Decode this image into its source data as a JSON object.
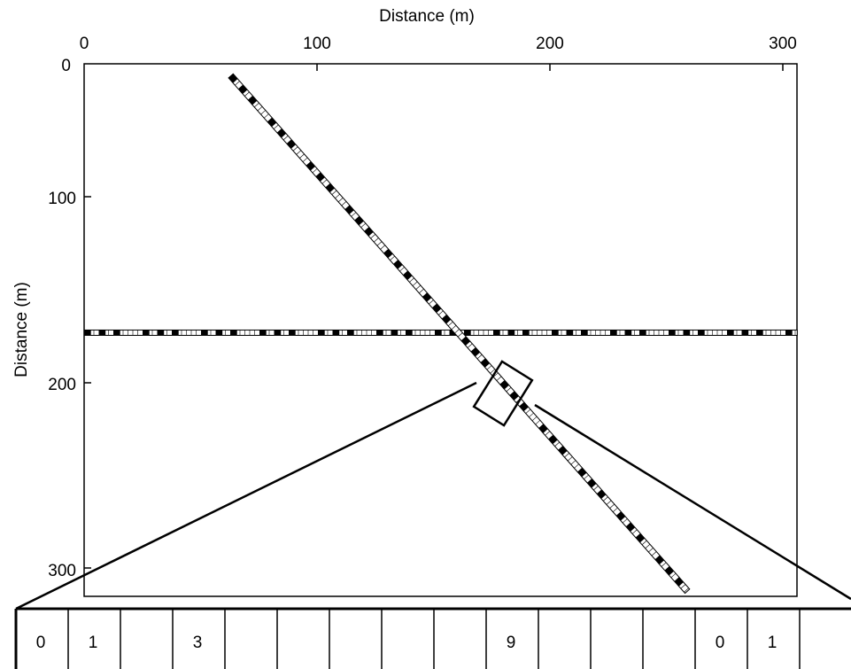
{
  "figure": {
    "top_axis_title": "Distance (m)",
    "left_axis_title": "Distance (m)",
    "top_tick_labels": [
      "0",
      "100",
      "200",
      "300"
    ],
    "left_tick_labels": [
      "0",
      "100",
      "200",
      "300"
    ],
    "x_range": [
      0,
      310
    ],
    "y_range": [
      0,
      315
    ],
    "lines": {
      "horizontal": {
        "y": 158,
        "x_start": 0,
        "x_end": 310,
        "pattern": "black-and-white-segments"
      },
      "diagonal": {
        "from": [
          63,
          3
        ],
        "to": [
          259,
          314
        ],
        "pattern": "black-and-white-segments"
      }
    },
    "zoom_box_center": [
      180.5,
      206
    ]
  },
  "strip": {
    "cell_labels": [
      "0",
      "1",
      "",
      "3",
      "",
      "",
      "",
      "",
      "",
      "9",
      "",
      "",
      "",
      "0",
      "1",
      ""
    ]
  },
  "colors": {
    "ink": "#000000",
    "paper": "#ffffff"
  }
}
